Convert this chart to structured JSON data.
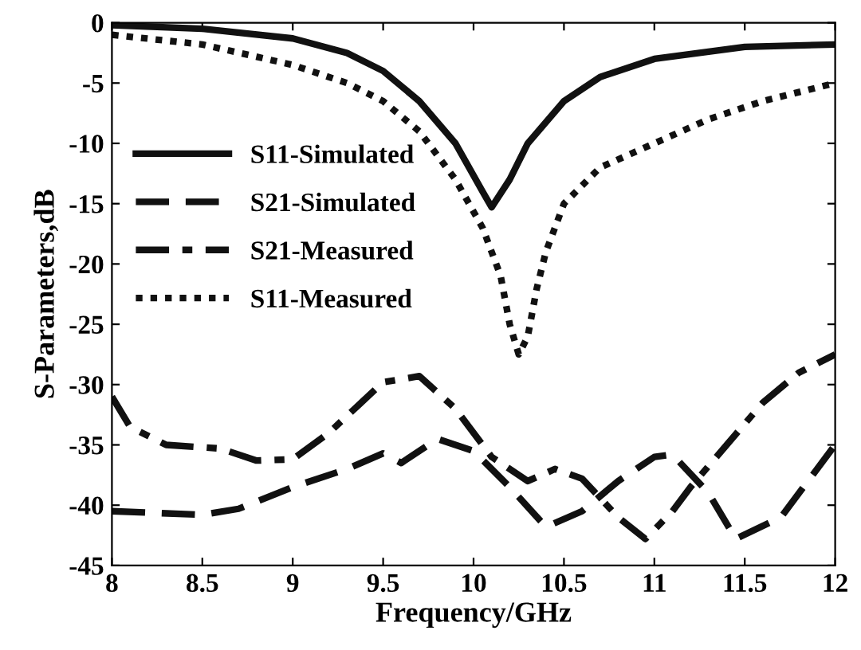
{
  "chart_data": {
    "type": "line",
    "xlabel": "Frequency/GHz",
    "ylabel": "S-Parameters,dB",
    "xlim": [
      8,
      12
    ],
    "xticks": [
      8,
      8.5,
      9,
      9.5,
      10,
      10.5,
      11,
      11.5,
      12
    ],
    "ylim": [
      -45,
      0
    ],
    "yticks": [
      -45,
      -40,
      -35,
      -30,
      -25,
      -20,
      -15,
      -10,
      -5,
      0
    ],
    "grid": false,
    "legend": "top left",
    "series": [
      {
        "name": "S11-Simulated",
        "color": "#111111",
        "line_style": "solid",
        "x": [
          8,
          8.5,
          9,
          9.3,
          9.5,
          9.7,
          9.9,
          10.05,
          10.1,
          10.2,
          10.3,
          10.5,
          10.7,
          11,
          11.5,
          12
        ],
        "values": [
          -0.2,
          -0.5,
          -1.3,
          -2.5,
          -4,
          -6.5,
          -10,
          -14,
          -15.3,
          -13,
          -10,
          -6.5,
          -4.5,
          -3,
          -2,
          -1.8
        ]
      },
      {
        "name": "S21-Simulated",
        "color": "#111111",
        "line_style": "dashed",
        "x": [
          8,
          8.5,
          8.7,
          9,
          9.3,
          9.5,
          9.6,
          9.8,
          10,
          10.2,
          10.4,
          10.6,
          10.8,
          11,
          11.1,
          11.3,
          11.45,
          11.7,
          12
        ],
        "values": [
          -40.5,
          -40.8,
          -40.3,
          -38.5,
          -37,
          -35.7,
          -36.5,
          -34.5,
          -35.5,
          -38.5,
          -41.8,
          -40.5,
          -38,
          -36,
          -35.8,
          -39,
          -42.8,
          -41,
          -35
        ]
      },
      {
        "name": "S21-Measured",
        "color": "#111111",
        "line_style": "dashdot",
        "x": [
          8,
          8.1,
          8.3,
          8.6,
          8.8,
          9,
          9.2,
          9.5,
          9.7,
          9.9,
          10.1,
          10.3,
          10.45,
          10.6,
          10.8,
          10.95,
          11.1,
          11.2,
          11.4,
          11.6,
          11.8,
          12
        ],
        "values": [
          -31,
          -33.5,
          -35,
          -35.3,
          -36.3,
          -36.2,
          -34,
          -29.8,
          -29.3,
          -32,
          -36,
          -38,
          -37,
          -37.8,
          -41,
          -42.8,
          -40.5,
          -38.5,
          -35,
          -31.5,
          -29,
          -27.5
        ]
      },
      {
        "name": "S11-Measured",
        "color": "#111111",
        "line_style": "dotted",
        "x": [
          8,
          8.5,
          9,
          9.3,
          9.5,
          9.7,
          9.9,
          10.05,
          10.15,
          10.2,
          10.25,
          10.3,
          10.35,
          10.4,
          10.5,
          10.7,
          11,
          11.3,
          11.6,
          12
        ],
        "values": [
          -1,
          -1.8,
          -3.5,
          -5,
          -6.5,
          -9,
          -13,
          -17,
          -21,
          -25,
          -27.5,
          -26,
          -22,
          -19,
          -15,
          -12,
          -10,
          -8,
          -6.5,
          -5
        ]
      }
    ]
  }
}
